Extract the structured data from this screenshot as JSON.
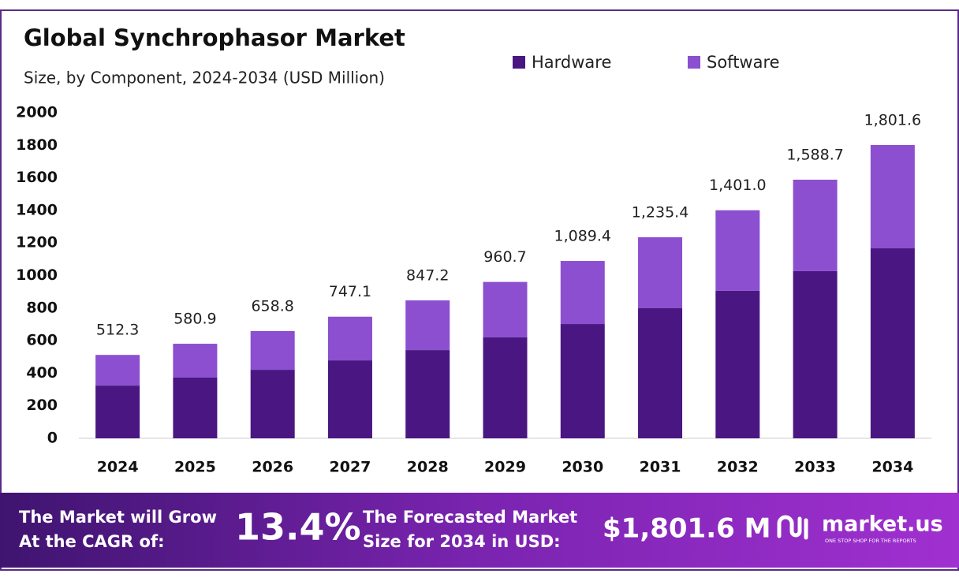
{
  "chart_data": {
    "type": "stacked-bar",
    "title": "Global Synchrophasor Market",
    "subtitle": "Size, by Component, 2024-2034 (USD Million)",
    "categories": [
      "2024",
      "2025",
      "2026",
      "2027",
      "2028",
      "2029",
      "2030",
      "2031",
      "2032",
      "2033",
      "2034"
    ],
    "series": [
      {
        "name": "Hardware",
        "color": "#4a1782",
        "values": [
          324,
          373,
          421,
          479,
          542,
          620,
          702,
          799,
          906,
          1027,
          1167
        ]
      },
      {
        "name": "Software",
        "color": "#8c4fcf",
        "values": [
          188.3,
          207.9,
          237.8,
          268.1,
          305.2,
          340.7,
          387.4,
          436.4,
          495.0,
          561.7,
          634.6
        ]
      }
    ],
    "totals": [
      512.3,
      580.9,
      658.8,
      747.1,
      847.2,
      960.7,
      1089.4,
      1235.4,
      1401.0,
      1588.7,
      1801.6
    ],
    "total_labels": [
      "512.3",
      "580.9",
      "658.8",
      "747.1",
      "847.2",
      "960.7",
      "1,089.4",
      "1,235.4",
      "1,401.0",
      "1,588.7",
      "1,801.6"
    ],
    "ylim": [
      0,
      2000
    ],
    "yticks": [
      0,
      200,
      400,
      600,
      800,
      1000,
      1200,
      1400,
      1600,
      1800,
      2000
    ],
    "grid": false
  },
  "banner": {
    "grow_line1": "The Market will Grow",
    "grow_line2": "At the CAGR of:",
    "cagr": "13.4%",
    "forecast_line1": "The Forecasted Market",
    "forecast_line2": "Size for 2034 in USD:",
    "forecast_value": "$1,801.6 M",
    "brand": "market.us",
    "tagline": "ONE STOP SHOP FOR THE REPORTS"
  }
}
